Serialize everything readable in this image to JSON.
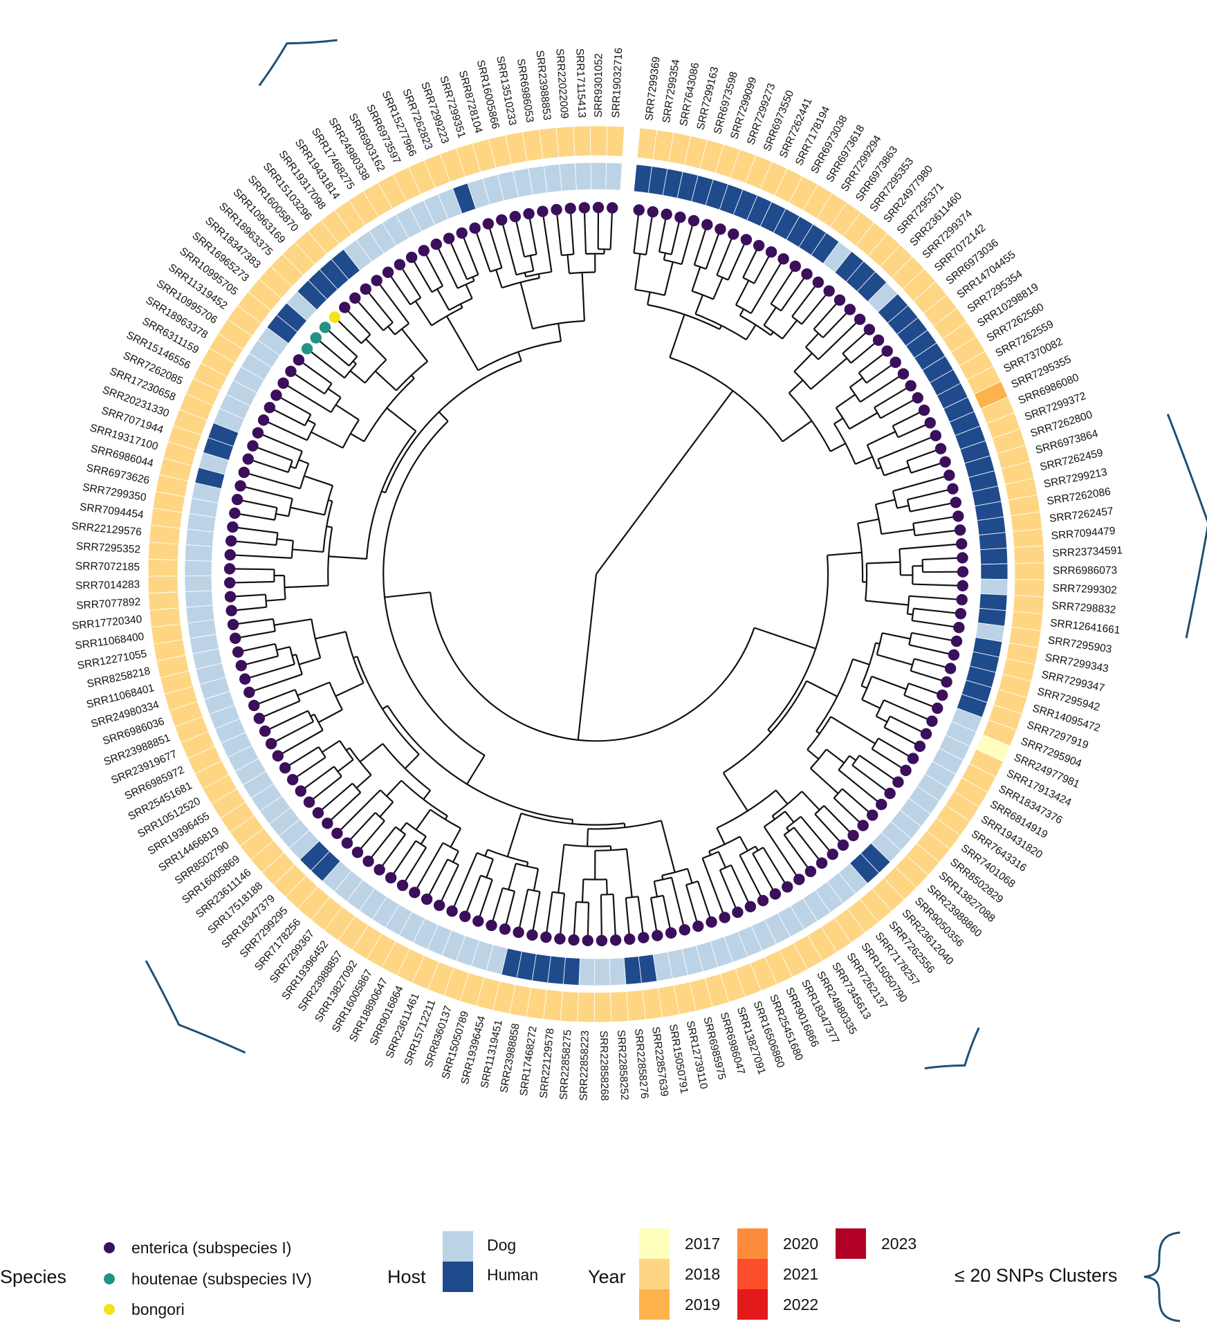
{
  "tree": {
    "tips": [
      "SRR7299369",
      "SRR7299354",
      "SRR7643086",
      "SRR7299163",
      "SRR6973598",
      "SRR7299099",
      "SRR7299273",
      "SRR6973550",
      "SRR7262441",
      "SRR7178194",
      "SRR6973038",
      "SRR6973618",
      "SRR7299294",
      "SRR6973863",
      "SRR7295353",
      "SRR24977980",
      "SRR7295371",
      "SRR23611460",
      "SRR7299374",
      "SRR7072142",
      "SRR6973036",
      "SRR14704455",
      "SRR7295354",
      "SRR10298819",
      "SRR7262560",
      "SRR7262559",
      "SRR7370082",
      "SRR7295355",
      "SRR6986080",
      "SRR7299372",
      "SRR7262800",
      "SRR6973864",
      "SRR7262459",
      "SRR7299213",
      "SRR7262086",
      "SRR7262457",
      "SRR7094479",
      "SRR23734591",
      "SRR6986073",
      "SRR7299302",
      "SRR7298832",
      "SRR12641661",
      "SRR7295903",
      "SRR7299343",
      "SRR7299347",
      "SRR7295942",
      "SRR14095472",
      "SRR7297919",
      "SRR7295904",
      "SRR24977981",
      "SRR17913424",
      "SRR18347376",
      "SRR6814919",
      "SRR19431820",
      "SRR7643316",
      "SRR7401068",
      "SRR8502829",
      "SRR13827088",
      "SRR23988860",
      "SRR9050356",
      "SRR23612040",
      "SRR7262556",
      "SRR7178257",
      "SRR15050790",
      "SRR7262137",
      "SRR7345613",
      "SRR24980335",
      "SRR18347377",
      "SRR9016866",
      "SRR25451680",
      "SRR16506860",
      "SRR13827091",
      "SRR6986047",
      "SRR6985975",
      "SRR12739110",
      "SRR15050791",
      "SRR22857639",
      "SRR22858276",
      "SRR22858252",
      "SRR22858268",
      "SRR22858223",
      "SRR22858275",
      "SRR22129578",
      "SRR17468272",
      "SRR23988858",
      "SRR11319451",
      "SRR19396454",
      "SRR15050789",
      "SRR8360137",
      "SRR15712211",
      "SRR23611461",
      "SRR9016864",
      "SRR18890647",
      "SRR16005867",
      "SRR13827092",
      "SRR23988857",
      "SRR19396452",
      "SRR7299367",
      "SRR7178256",
      "SRR7299295",
      "SRR18347379",
      "SRR17518188",
      "SRR23611146",
      "SRR16005869",
      "SRR8502790",
      "SRR14466819",
      "SRR19396455",
      "SRR10512520",
      "SRR25451681",
      "SRR6985972",
      "SRR23919677",
      "SRR23988851",
      "SRR6986036",
      "SRR24980334",
      "SRR11068401",
      "SRR8258218",
      "SRR12271055",
      "SRR11068400",
      "SRR17720340",
      "SRR7077892",
      "SRR7014283",
      "SRR7072185",
      "SRR7295352",
      "SRR22129576",
      "SRR7094454",
      "SRR7299350",
      "SRR6973626",
      "SRR6986044",
      "SRR19317100",
      "SRR7071944",
      "SRR20231330",
      "SRR17230658",
      "SRR7262085",
      "SRR15146556",
      "SRR6311159",
      "SRR18963378",
      "SRR10995706",
      "SRR11319452",
      "SRR10995705",
      "SRR16965273",
      "SRR18347383",
      "SRR18963375",
      "SRR10963169",
      "SRR16005870",
      "SRR15103296",
      "SRR19317098",
      "SRR19431814",
      "SRR17468275",
      "SRR24980338",
      "SRR6903162",
      "SRR6973597",
      "SRR15277966",
      "SRR7262823",
      "SRR7299223",
      "SRR7299351",
      "SRR8728104",
      "SRR16005866",
      "SRR13510233",
      "SRR6986053",
      "SRR23988853",
      "SRR22022009",
      "SRR17115413",
      "SRR9301052",
      "SRR19032716"
    ],
    "host": "HHHHHHHHHHHHHHDHHHDHHHHHHHHHHHHHHHHHHHHDHHDHHHHHDDDDDDDDDDDHHDDDDDDDDDDDDDDDHHDDDHHHHHDDDDDDDDDDDDDHHDDDDDDDDDDDDDDDDDDDDDDDDDDHDHHDDDDDDDHHDHHHHDDDDDDDDHDDDDDDDDDDHHDDDHDDDDDDDDHD",
    "year": "8888888888888381888888888889888888888838888888881788888888888888888888888888888888888882222222222212221222222221112212818821818822211288811888818888888882222228188882888811222188882888288",
    "species_override": {
      "bongori": [
        141
      ],
      "houtenae": [
        138,
        139,
        140
      ]
    }
  },
  "legend": {
    "species_title": "Species",
    "species_items": [
      {
        "label": "enterica (subspecies I)",
        "color": "#3b0f5c"
      },
      {
        "label": "houtenae (subspecies IV)",
        "color": "#219485"
      },
      {
        "label": "bongori",
        "color": "#f5e11c"
      }
    ],
    "host_title": "Host",
    "host_items": [
      {
        "label": "Dog",
        "color": "#bcd3e6"
      },
      {
        "label": "Human",
        "color": "#1f4a8c"
      }
    ],
    "year_title": "Year",
    "year_items": [
      {
        "label": "2017",
        "color": "#ffffbe"
      },
      {
        "label": "2018",
        "color": "#fed582"
      },
      {
        "label": "2019",
        "color": "#feb24c"
      },
      {
        "label": "2020",
        "color": "#fd8d3c"
      },
      {
        "label": "2021",
        "color": "#fc4e2a"
      },
      {
        "label": "2022",
        "color": "#e31a1c"
      },
      {
        "label": "2023",
        "color": "#b10026"
      }
    ],
    "cluster_label": "≤ 20 SNPs Clusters"
  }
}
